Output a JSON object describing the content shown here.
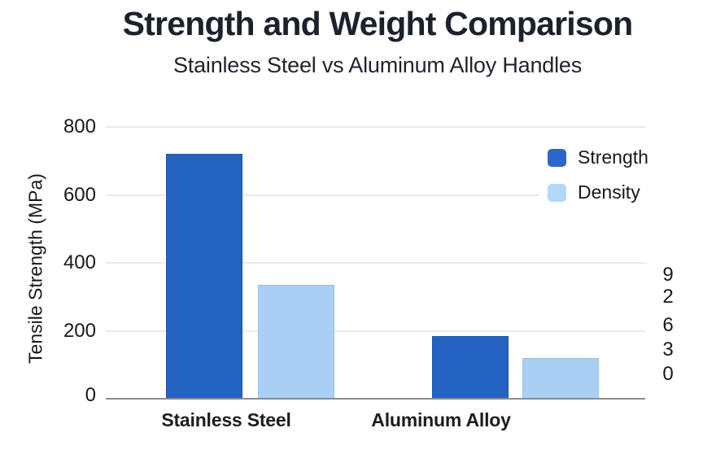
{
  "chart_data": {
    "type": "bar",
    "title": "Strength and Weight Comparison",
    "subtitle": "Stainless Steel vs Aluminum Alloy Handles",
    "categories": [
      "Stainless Steel",
      "Aluminum Alloy"
    ],
    "series": [
      {
        "name": "Strength",
        "color": "#2463c2",
        "edge_color": "#1e55a8",
        "values": [
          720,
          185
        ]
      },
      {
        "name": "Density",
        "color": "#a9d0f4",
        "edge_color": "#93c2ec",
        "values": [
          335,
          120
        ]
      }
    ],
    "ylabel": "Tensile Strength (MPa)",
    "xlabel": "",
    "y_ticks": [
      0,
      200,
      400,
      600,
      800
    ],
    "ylim": [
      0,
      840
    ],
    "right_axis_tick_labels": [
      "9",
      "2",
      "6",
      "3",
      "0"
    ],
    "grid": "horizontal",
    "legend": {
      "position": "top-right",
      "entries": [
        {
          "label": "Strength",
          "color": "#2b66c9"
        },
        {
          "label": "Density",
          "color": "#b4d7f7"
        }
      ]
    },
    "colors": {
      "background": "#ffffff",
      "gridline": "#e9eaed",
      "axis_line": "#8b8c91",
      "title_text": "#1c222c",
      "tick_text": "#17181b"
    }
  }
}
